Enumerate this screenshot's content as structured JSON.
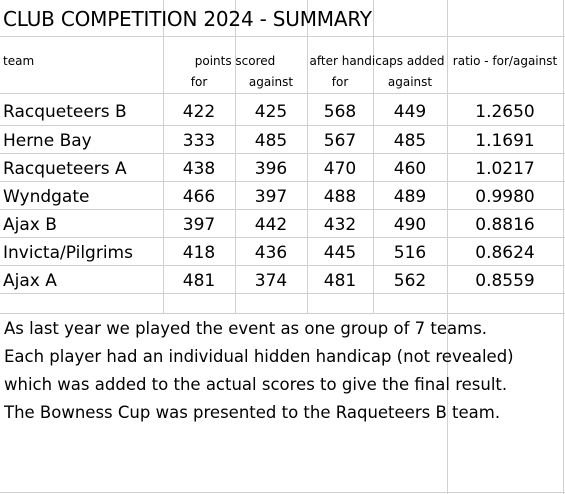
{
  "title": "CLUB COMPETITION 2024 - SUMMARY",
  "headers": {
    "team": "team",
    "points_scored": "points scored",
    "after_handicaps": "after handicaps added",
    "ratio": "ratio - for/against",
    "for_1": "for",
    "against_1": "against",
    "for_2": "for",
    "against_2": "against"
  },
  "rows": [
    {
      "team": "Racqueteers B",
      "for": "422",
      "against": "425",
      "hc_for": "568",
      "hc_against": "449",
      "ratio": "1.2650"
    },
    {
      "team": "Herne Bay",
      "for": "333",
      "against": "485",
      "hc_for": "567",
      "hc_against": "485",
      "ratio": "1.1691"
    },
    {
      "team": "Racqueteers A",
      "for": "438",
      "against": "396",
      "hc_for": "470",
      "hc_against": "460",
      "ratio": "1.0217"
    },
    {
      "team": "Wyndgate",
      "for": "466",
      "against": "397",
      "hc_for": "488",
      "hc_against": "489",
      "ratio": "0.9980"
    },
    {
      "team": "Ajax B",
      "for": "397",
      "against": "442",
      "hc_for": "432",
      "hc_against": "490",
      "ratio": "0.8816"
    },
    {
      "team": "Invicta/Pilgrims",
      "for": "418",
      "against": "436",
      "hc_for": "445",
      "hc_against": "516",
      "ratio": "0.8624"
    },
    {
      "team": "Ajax A",
      "for": "481",
      "against": "374",
      "hc_for": "481",
      "hc_against": "562",
      "ratio": "0.8559"
    }
  ],
  "notes": [
    "As last  year we played the event as one group of 7 teams.",
    "Each player had an individual hidden handicap (not revealed)",
    "which was added to the actual scores to give the final result.",
    "The Bowness Cup was presented to the Raqueteers B team."
  ]
}
